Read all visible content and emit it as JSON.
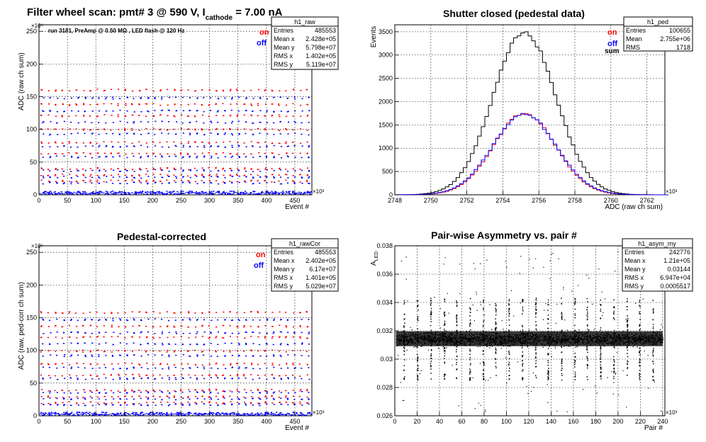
{
  "figure": {
    "background": "#ffffff",
    "grid_color": "#000000",
    "colors": {
      "on": "#ff0000",
      "off": "#0000ff",
      "sum": "#000000",
      "magenta": "#a000a0"
    }
  },
  "chart_data": [
    {
      "id": "raw",
      "type": "scatter",
      "title_parts": [
        "Filter wheel scan: pmt#   3 @   590 V, I",
        "cathode",
        "  = 7.00 nA"
      ],
      "subtitle": "run 3181, PreAmp @ 0.50 MΩ , LED flash @  120 Hz",
      "xlabel": "Event #",
      "ylabel": "ADC (raw ch sum)",
      "x_exponent": "×10³",
      "y_exponent": "×10⁶",
      "xlim": [
        0,
        480
      ],
      "ylim": [
        0,
        260
      ],
      "xticks": [
        0,
        50,
        100,
        150,
        200,
        250,
        300,
        350,
        400,
        450
      ],
      "yticks": [
        0,
        50,
        100,
        150,
        200,
        250
      ],
      "legend": [
        {
          "label": "on",
          "color": "#ff0000"
        },
        {
          "label": "off",
          "color": "#0000ff"
        }
      ],
      "stats": {
        "name": "h1_raw",
        "rows": [
          [
            "Entries",
            "485553"
          ],
          [
            "Mean x",
            "2.428e+05"
          ],
          [
            "Mean y",
            "5.798e+07"
          ],
          [
            "RMS x",
            "1.402e+05"
          ],
          [
            "RMS y",
            "5.119e+07"
          ]
        ]
      },
      "series": [
        {
          "name": "on",
          "color": "#ff0000",
          "levels": [
            160,
            138,
            121,
            100,
            80,
            63,
            40,
            30,
            21
          ]
        },
        {
          "name": "off",
          "color": "#0000ff",
          "levels": [
            148,
            128,
            111,
            93,
            74,
            58,
            37,
            27,
            18,
            3
          ]
        }
      ]
    },
    {
      "id": "ped",
      "type": "histogram",
      "title": "Shutter closed (pedestal data)",
      "xlabel": "ADC (raw ch sum)",
      "ylabel": "Events",
      "x_exponent": "×10³",
      "xlim": [
        2748,
        2763
      ],
      "ylim": [
        0,
        3650
      ],
      "xticks": [
        2748,
        2750,
        2752,
        2754,
        2756,
        2758,
        2760,
        2762
      ],
      "yticks": [
        0,
        500,
        1000,
        1500,
        2000,
        2500,
        3000,
        3500
      ],
      "legend": [
        {
          "label": "on",
          "color": "#ff0000"
        },
        {
          "label": "off",
          "color": "#0000ff"
        },
        {
          "label": "sum",
          "color": "#000000"
        }
      ],
      "stats": {
        "name": "h1_ped",
        "rows": [
          [
            "Entries",
            "100655"
          ],
          [
            "Mean",
            "2.755e+06"
          ],
          [
            "RMS",
            "1718"
          ]
        ]
      },
      "series": [
        {
          "name": "sum",
          "color": "#000000",
          "peak_x": 2755.2,
          "peak_y": 3480,
          "sigma": 1.75
        },
        {
          "name": "on",
          "color": "#ff0000",
          "peak_x": 2755.2,
          "peak_y": 1745,
          "sigma": 1.72
        },
        {
          "name": "off",
          "color": "#0000ff",
          "peak_x": 2755.2,
          "peak_y": 1730,
          "sigma": 1.76
        }
      ]
    },
    {
      "id": "rawCor",
      "type": "scatter",
      "title": "Pedestal-corrected",
      "xlabel": "Event #",
      "ylabel": "ADC (raw, ped-corr ch sum)",
      "x_exponent": "×10³",
      "y_exponent": "×10⁶",
      "xlim": [
        0,
        480
      ],
      "ylim": [
        0,
        260
      ],
      "xticks": [
        0,
        50,
        100,
        150,
        200,
        250,
        300,
        350,
        400,
        450
      ],
      "yticks": [
        0,
        50,
        100,
        150,
        200,
        250
      ],
      "legend": [
        {
          "label": "on",
          "color": "#ff0000"
        },
        {
          "label": "off",
          "color": "#0000ff"
        }
      ],
      "stats": {
        "name": "h1_rawCor",
        "rows": [
          [
            "Entries",
            "485553"
          ],
          [
            "Mean x",
            "2.402e+05"
          ],
          [
            "Mean y",
            "6.17e+07"
          ],
          [
            "RMS x",
            "1.401e+05"
          ],
          [
            "RMS y",
            "5.029e+07"
          ]
        ]
      },
      "series": [
        {
          "name": "on",
          "color": "#ff0000",
          "levels": [
            158,
            137,
            120,
            99,
            79,
            62,
            39,
            29,
            20
          ]
        },
        {
          "name": "off",
          "color": "#0000ff",
          "levels": [
            147,
            127,
            110,
            92,
            73,
            57,
            36,
            26,
            17,
            3
          ]
        }
      ]
    },
    {
      "id": "asym",
      "type": "scatter",
      "title": "Pair-wise Asymmetry vs. pair #",
      "xlabel": "Pair #",
      "ylabel": "A",
      "ylabel_sub": "LED",
      "x_exponent": "×10³",
      "xlim": [
        0,
        242
      ],
      "ylim": [
        0.026,
        0.038
      ],
      "xticks": [
        0,
        20,
        40,
        60,
        80,
        100,
        120,
        140,
        160,
        180,
        200,
        220,
        240
      ],
      "yticks": [
        0.026,
        0.028,
        0.03,
        0.032,
        0.034,
        0.036,
        0.038
      ],
      "stats": {
        "name": "h1_asym_my",
        "rows": [
          [
            "Entries",
            "242776"
          ],
          [
            "Mean x",
            "1.21e+05"
          ],
          [
            "Mean y",
            "0.03144"
          ],
          [
            "RMS x",
            "6.947e+04"
          ],
          [
            "RMS y",
            "0.0005517"
          ]
        ]
      },
      "band_center": 0.03144,
      "band_halfwidth": 0.0007,
      "spike_x": [
        8,
        20,
        32,
        44,
        55,
        67,
        79,
        90,
        102,
        114,
        126,
        137,
        149,
        161,
        172,
        184,
        196,
        208,
        219,
        231
      ]
    }
  ]
}
